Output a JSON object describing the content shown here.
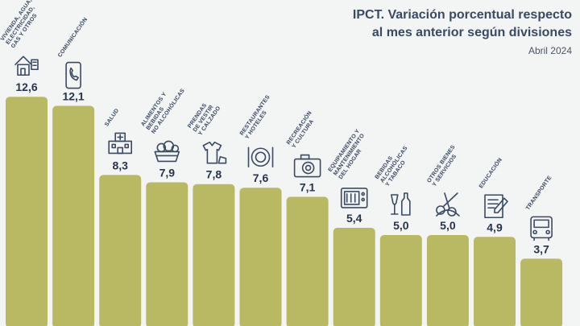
{
  "title": {
    "line1": "IPCT. Variación porcentual respecto",
    "line2": "al mes anterior según divisiones",
    "subtitle": "Abril 2024"
  },
  "colors": {
    "bar": "#b9b964",
    "background": "#f3f4f4",
    "text": "#3a4a63",
    "icon": "#3a4a63"
  },
  "chart_data": {
    "type": "bar",
    "title": "IPCT. Variación porcentual respecto al mes anterior según divisiones",
    "subtitle": "Abril 2024",
    "categories": [
      "VIVIENDA, AGUA, ELECTRICIDAD, GAS Y OTROS",
      "COMUNICACIÓN",
      "SALUD",
      "ALIMENTOS Y BEBIDAS NO ALCOHÓLICAS",
      "PRENDAS DE VESTIR Y CALZADO",
      "RESTAURANTES Y HOTELES",
      "RECREACIÓN Y CULTURA",
      "EQUIPAMIENTO Y MANTENIMIENTO DEL HOGAR",
      "BEBIDAS ALCOHÓLICAS Y TABACO",
      "OTROS BIENES Y SERVICIOS",
      "EDUCACIÓN",
      "TRANSPORTE"
    ],
    "label_lines": [
      [
        "VIVIENDA, AGUA,",
        "ELECTRICIDAD,",
        "GAS Y OTROS"
      ],
      [
        "COMUNICACIÓN"
      ],
      [
        "SALUD"
      ],
      [
        "ALIMENTOS Y",
        "BEBIDAS",
        "NO ALCOHÓLICAS"
      ],
      [
        "PRENDAS",
        "DE VESTIR",
        "Y CALZADO"
      ],
      [
        "RESTAURANTES",
        "Y HOTELES"
      ],
      [
        "RECREACIÓN",
        "Y CULTURA"
      ],
      [
        "EQUIPAMIENTO Y",
        "MANTENIMIENTO",
        "DEL HOGAR"
      ],
      [
        "BEBIDAS",
        "ALCOHÓLICAS",
        "Y TABACO"
      ],
      [
        "OTROS BIENES",
        "Y SERVICIOS"
      ],
      [
        "EDUCACIÓN"
      ],
      [
        "TRANSPORTE"
      ]
    ],
    "values": [
      12.6,
      12.1,
      8.3,
      7.9,
      7.8,
      7.6,
      7.1,
      5.4,
      5.0,
      5.0,
      4.9,
      3.7
    ],
    "value_labels": [
      "12,6",
      "12,1",
      "8,3",
      "7,9",
      "7,8",
      "7,6",
      "7,1",
      "5,4",
      "5,0",
      "5,0",
      "4,9",
      "3,7"
    ],
    "icons": [
      "house-icon",
      "phone-icon",
      "hospital-icon",
      "food-basket-icon",
      "clothing-icon",
      "restaurant-icon",
      "camera-icon",
      "microwave-icon",
      "bottles-icon",
      "scissors-icon",
      "education-icon",
      "bus-icon"
    ],
    "xlabel": "",
    "ylabel": "",
    "ylim": [
      0,
      13.5
    ],
    "grid": false,
    "legend": "none"
  }
}
